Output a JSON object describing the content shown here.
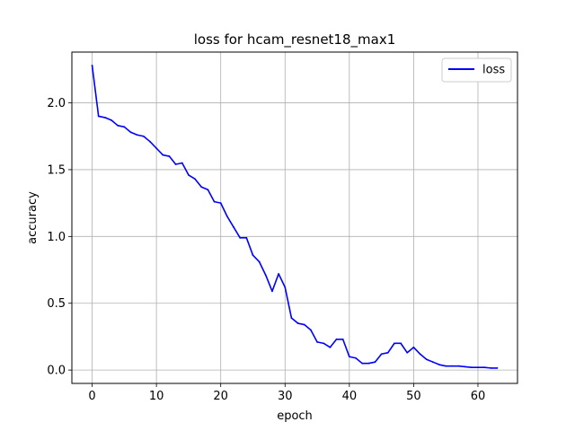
{
  "chart_data": {
    "type": "line",
    "title": "loss for hcam_resnet18_max1",
    "xlabel": "epoch",
    "ylabel": "accuracy",
    "xlim": [
      -3.15,
      66.15
    ],
    "ylim": [
      -0.1,
      2.38
    ],
    "x_ticks": [
      0,
      10,
      20,
      30,
      40,
      50,
      60
    ],
    "y_ticks": [
      0.0,
      0.5,
      1.0,
      1.5,
      2.0
    ],
    "x_tick_labels": [
      "0",
      "10",
      "20",
      "30",
      "40",
      "50",
      "60"
    ],
    "y_tick_labels": [
      "0.0",
      "0.5",
      "1.0",
      "1.5",
      "2.0"
    ],
    "grid": true,
    "legend_position": "top-right",
    "series": [
      {
        "name": "loss",
        "color": "#0000ff",
        "x": [
          0,
          1,
          2,
          3,
          4,
          5,
          6,
          7,
          8,
          9,
          10,
          11,
          12,
          13,
          14,
          15,
          16,
          17,
          18,
          19,
          20,
          21,
          22,
          23,
          24,
          25,
          26,
          27,
          28,
          29,
          30,
          31,
          32,
          33,
          34,
          35,
          36,
          37,
          38,
          39,
          40,
          41,
          42,
          43,
          44,
          45,
          46,
          47,
          48,
          49,
          50,
          51,
          52,
          53,
          54,
          55,
          56,
          57,
          58,
          59,
          60,
          61,
          62,
          63
        ],
        "values": [
          2.28,
          1.9,
          1.89,
          1.87,
          1.83,
          1.82,
          1.78,
          1.76,
          1.75,
          1.71,
          1.66,
          1.61,
          1.6,
          1.54,
          1.55,
          1.46,
          1.43,
          1.37,
          1.35,
          1.26,
          1.25,
          1.15,
          1.07,
          0.99,
          0.99,
          0.86,
          0.81,
          0.71,
          0.59,
          0.72,
          0.62,
          0.39,
          0.35,
          0.34,
          0.3,
          0.21,
          0.2,
          0.17,
          0.23,
          0.23,
          0.1,
          0.09,
          0.05,
          0.05,
          0.06,
          0.12,
          0.13,
          0.2,
          0.2,
          0.13,
          0.17,
          0.12,
          0.08,
          0.06,
          0.04,
          0.03,
          0.03,
          0.03,
          0.025,
          0.02,
          0.02,
          0.02,
          0.015,
          0.015
        ]
      }
    ]
  }
}
